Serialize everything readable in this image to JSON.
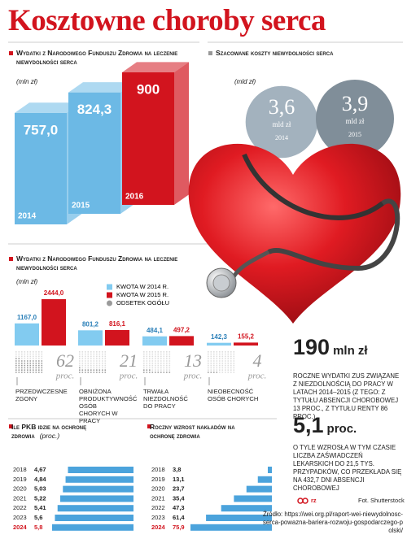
{
  "title": "Kosztowne choroby serca",
  "chart_data": [
    {
      "type": "bar3d",
      "title": "Wydatki z Narodowego Funduszu Zdrowia na leczenie niewydolności serca",
      "unit": "(mln zł)",
      "categories": [
        "2014",
        "2015",
        "2016"
      ],
      "values": [
        757.0,
        824.3,
        900
      ],
      "value_labels": [
        "757,0",
        "824,3",
        "900"
      ],
      "colors": [
        "#6cb9e5",
        "#6cb9e5",
        "#d2141e"
      ]
    },
    {
      "type": "bubble",
      "title": "Szacowane koszty niewydolności serca",
      "unit": "(mld zł)",
      "value_unit": "mld zł",
      "categories": [
        "2014",
        "2015"
      ],
      "values": [
        3.6,
        3.9
      ],
      "value_labels": [
        "3,6",
        "3,9"
      ],
      "colors": [
        "#a3b2be",
        "#808e99"
      ]
    },
    {
      "type": "grouped_bar",
      "title": "Wydatki z Narodowego Funduszu Zdrowia na leczenie niewydolności serca",
      "unit": "(mln zł)",
      "categories": [
        "Przedwczesne zgony",
        "Obniżona produktywność osób chorych w pracy",
        "Trwała niezdolność do pracy",
        "Nieobecność osób chorych"
      ],
      "series": [
        {
          "name": "KWOTA W 2014 R.",
          "color": "#82cbf0",
          "values": [
            1167.0,
            801.2,
            484.1,
            142.3
          ],
          "value_labels": [
            "1167,0",
            "801,2",
            "484,1",
            "142,3"
          ]
        },
        {
          "name": "KWOTA W 2015 R.",
          "color": "#d2141e",
          "values": [
            2444.0,
            816.1,
            497.2,
            155.2
          ],
          "value_labels": [
            "2444,0",
            "816,1",
            "497,2",
            "155,2"
          ]
        },
        {
          "name": "ODSETEK OGÓŁU",
          "color": "#9a9a9a",
          "values": [
            62,
            21,
            13,
            4
          ]
        }
      ],
      "percent_unit": "proc."
    },
    {
      "type": "hbar",
      "title": "Ile PKB idzie na ochronę zdrowia",
      "unit": "(proc.)",
      "categories": [
        "2018",
        "2019",
        "2020",
        "2021",
        "2022",
        "2023",
        "2024"
      ],
      "values": [
        4.67,
        4.84,
        5.03,
        5.22,
        5.41,
        5.6,
        5.8
      ],
      "value_labels": [
        "4,67",
        "4,84",
        "5,03",
        "5,22",
        "5,41",
        "5,6",
        "5,8"
      ],
      "color": "#4ba3dc",
      "highlight_color": "#d2141e"
    },
    {
      "type": "hbar",
      "title": "Roczny wzrost nakładów na ochronę zdrowia",
      "categories": [
        "2018",
        "2019",
        "2020",
        "2021",
        "2022",
        "2023",
        "2024"
      ],
      "values": [
        3.8,
        13.1,
        23.7,
        35.4,
        47.3,
        61.4,
        75.9
      ],
      "value_labels": [
        "3,8",
        "13,1",
        "23,7",
        "35,4",
        "47,3",
        "61,4",
        "75,9"
      ],
      "color": "#4ba3dc",
      "highlight_color": "#d2141e"
    }
  ],
  "facts": [
    {
      "value": "190",
      "unit": "mln zł",
      "text": "Roczne wydatki ZUS związane z niezdolnością do pracy w latach 2014–2015 (z tego: z tytułu absencji chorobowej 13 proc., z tytułu renty 86 proc.)"
    },
    {
      "value": "5,1",
      "unit": "proc.",
      "text": "O tyle wzrosła w tym czasie liczba zaświadczeń lekarskich do 21,5 tys. przypadków, co przekłada się na 432,7 dni absencji chorobowej"
    }
  ],
  "logo": "rz",
  "photo_credit": "Fot. Shutterstock",
  "source": "Źródło: https://wei.org.pl/raport-wei-niewydolnosc-serca-powazna-bariera-rozwoju-gospodarczego-polski/"
}
